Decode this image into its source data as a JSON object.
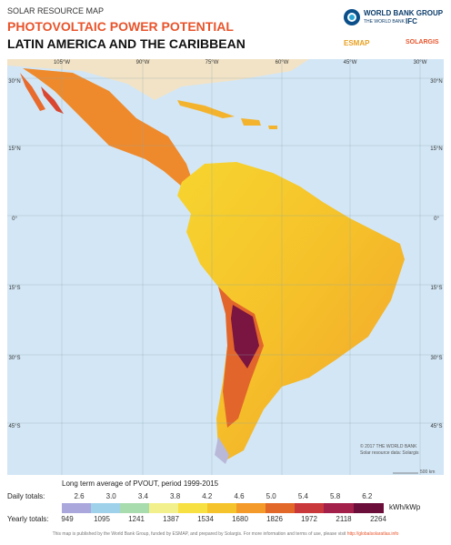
{
  "header": {
    "kicker": "SOLAR RESOURCE MAP",
    "title": "PHOTOVOLTAIC POWER POTENTIAL",
    "subtitle": "LATIN AMERICA AND THE CARIBBEAN"
  },
  "logos": {
    "world_bank": "WORLD BANK GROUP",
    "world_bank_sub": "THE WORLD BANK",
    "ifc": "IFC",
    "esmap": "ESMAP",
    "solargis": "SOLARGIS"
  },
  "map": {
    "longitudes": [
      "105°W",
      "90°W",
      "75°W",
      "60°W",
      "45°W",
      "30°W"
    ],
    "latitudes": [
      "30°N",
      "15°N",
      "0°",
      "15°S",
      "30°S",
      "45°S"
    ],
    "credit": "© 2017 THE WORLD BANK",
    "credit2": "Solar resource data: Solargis",
    "scale": "500 km"
  },
  "legend": {
    "caption": "Long term average of PVOUT, period 1999-2015",
    "daily_label": "Daily totals:",
    "daily": [
      "2.6",
      "3.0",
      "3.4",
      "3.8",
      "4.2",
      "4.6",
      "5.0",
      "5.4",
      "5.8",
      "6.2"
    ],
    "yearly_label": "Yearly totals:",
    "yearly": [
      "949",
      "1095",
      "1241",
      "1387",
      "1534",
      "1680",
      "1826",
      "1972",
      "2118",
      "2264"
    ],
    "unit": "kWh/kWp"
  },
  "footer": {
    "text": "This map is published by the World Bank Group, funded by ESMAP, and prepared by Solargis. For more information and terms of use, please visit",
    "link": "http://globalsolaratlas.info"
  }
}
